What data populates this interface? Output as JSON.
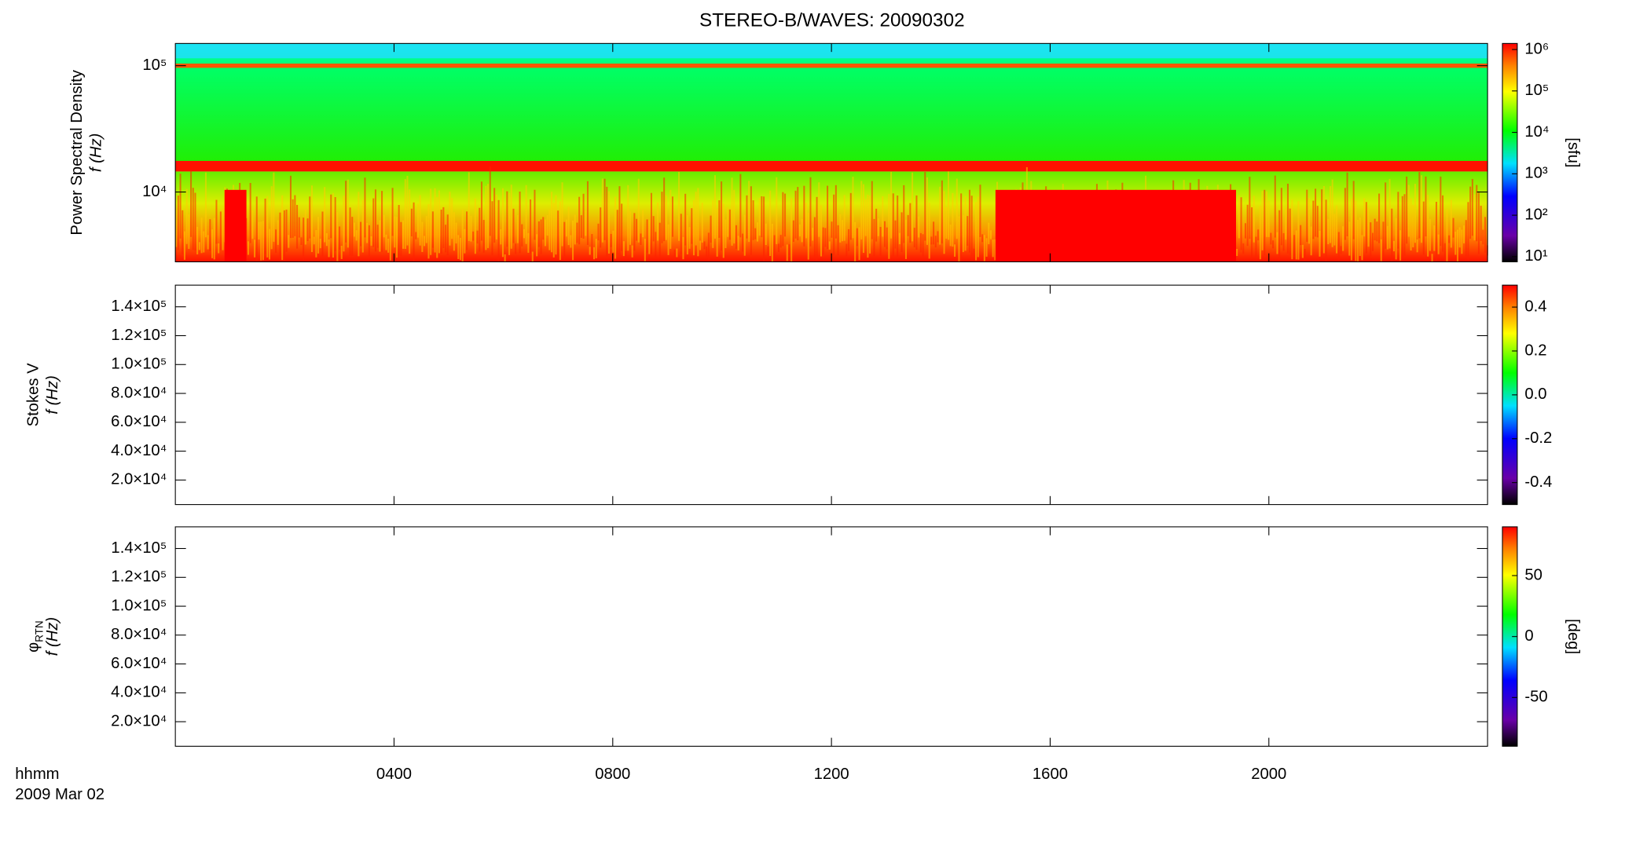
{
  "title": "STEREO-B/WAVES: 20090302",
  "xaxis": {
    "xlim": [
      0,
      24
    ],
    "xticks": [
      {
        "value": 4,
        "label": "0400"
      },
      {
        "value": 8,
        "label": "0800"
      },
      {
        "value": 12,
        "label": "1200"
      },
      {
        "value": 16,
        "label": "1600"
      },
      {
        "value": 20,
        "label": "2000"
      }
    ],
    "xlabel": "hhmm",
    "date": "2009 Mar 02"
  },
  "chart_data": [
    {
      "type": "spectrogram",
      "ylabel": "Power Spectral Density",
      "ylabel2": "f (Hz)",
      "ylog": true,
      "ylim": [
        2800,
        150000
      ],
      "yticks": [
        {
          "value": 10000,
          "label": "10⁴"
        },
        {
          "value": 100000,
          "label": "10⁵"
        }
      ],
      "colorbar": {
        "label": "[sfu]",
        "log": true,
        "clim": [
          7.5,
          1400000
        ],
        "ticks": [
          {
            "value": 10,
            "label": "10¹"
          },
          {
            "value": 100,
            "label": "10²"
          },
          {
            "value": 1000,
            "label": "10³"
          },
          {
            "value": 10000,
            "label": "10⁴"
          },
          {
            "value": 100000,
            "label": "10⁵"
          },
          {
            "value": 1000000,
            "label": "10⁶"
          }
        ]
      }
    },
    {
      "type": "spectrogram",
      "ylabel": "Stokes V",
      "ylabel2": "f (Hz)",
      "ylog": false,
      "ylim": [
        3000,
        155000
      ],
      "yticks": [
        {
          "value": 20000,
          "label": "2.0×10⁴"
        },
        {
          "value": 40000,
          "label": "4.0×10⁴"
        },
        {
          "value": 60000,
          "label": "6.0×10⁴"
        },
        {
          "value": 80000,
          "label": "8.0×10⁴"
        },
        {
          "value": 100000,
          "label": "1.0×10⁵"
        },
        {
          "value": 120000,
          "label": "1.2×10⁵"
        },
        {
          "value": 140000,
          "label": "1.4×10⁵"
        }
      ],
      "colorbar": {
        "log": false,
        "clim": [
          -0.5,
          0.5
        ],
        "ticks": [
          -0.4,
          -0.2,
          {
            "value": 0,
            "label": "0.0"
          },
          0.2,
          0.4
        ]
      }
    },
    {
      "type": "spectrogram",
      "ylabel": "φ",
      "ylabel_sub": "RTN",
      "ylabel2": "f (Hz)",
      "ylog": false,
      "ylim": [
        3000,
        155000
      ],
      "yticks": [
        {
          "value": 20000,
          "label": "2.0×10⁴"
        },
        {
          "value": 40000,
          "label": "4.0×10⁴"
        },
        {
          "value": 60000,
          "label": "6.0×10⁴"
        },
        {
          "value": 80000,
          "label": "8.0×10⁴"
        },
        {
          "value": 100000,
          "label": "1.0×10⁵"
        },
        {
          "value": 120000,
          "label": "1.2×10⁵"
        },
        {
          "value": 140000,
          "label": "1.4×10⁵"
        }
      ],
      "colorbar": {
        "label": "[deg]",
        "log": false,
        "clim": [
          -90,
          90
        ],
        "ticks": [
          -50,
          0,
          50
        ]
      }
    }
  ]
}
